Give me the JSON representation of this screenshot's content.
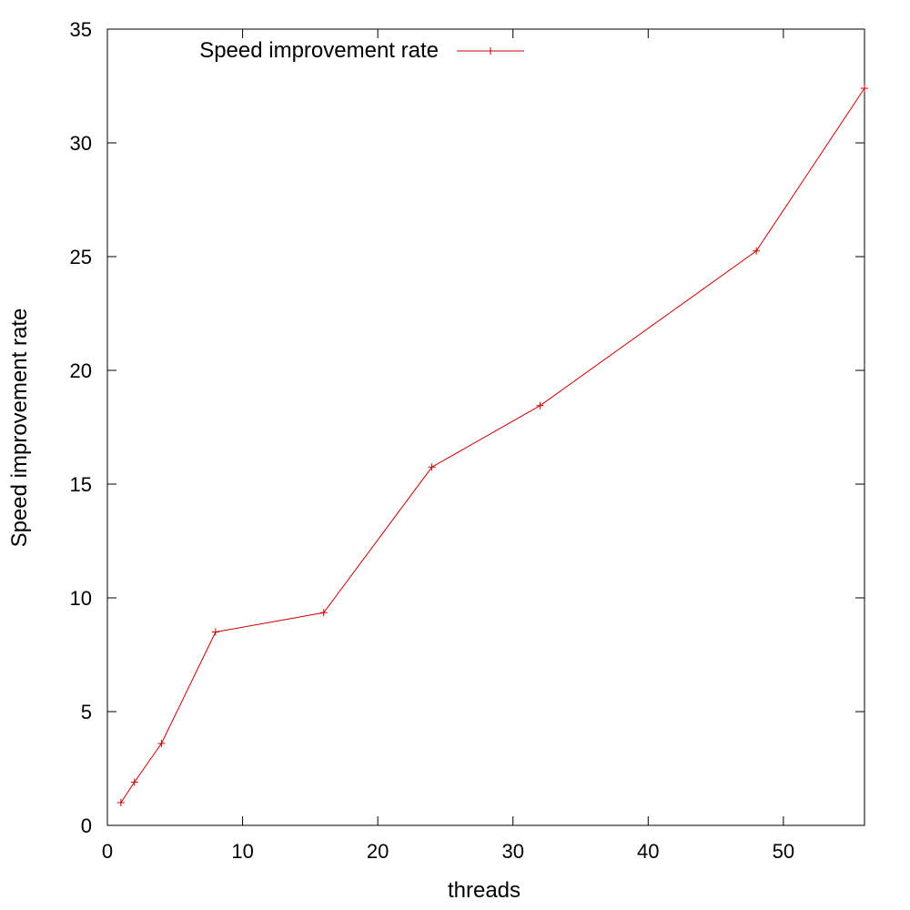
{
  "chart_data": {
    "type": "line",
    "xlabel": "threads",
    "ylabel": "Speed improvement rate",
    "xlim": [
      0,
      56
    ],
    "ylim": [
      0,
      35
    ],
    "xticks": [
      0,
      10,
      20,
      30,
      40,
      50
    ],
    "yticks": [
      0,
      5,
      10,
      15,
      20,
      25,
      30,
      35
    ],
    "grid": false,
    "legend_position": "top-left",
    "series": [
      {
        "name": "Speed improvement rate",
        "color": "#cc0000",
        "marker": "plus",
        "x": [
          1,
          2,
          4,
          8,
          16,
          24,
          32,
          48,
          56
        ],
        "y": [
          1.0,
          1.9,
          3.6,
          8.5,
          9.35,
          15.75,
          18.45,
          25.25,
          32.4
        ]
      }
    ]
  }
}
